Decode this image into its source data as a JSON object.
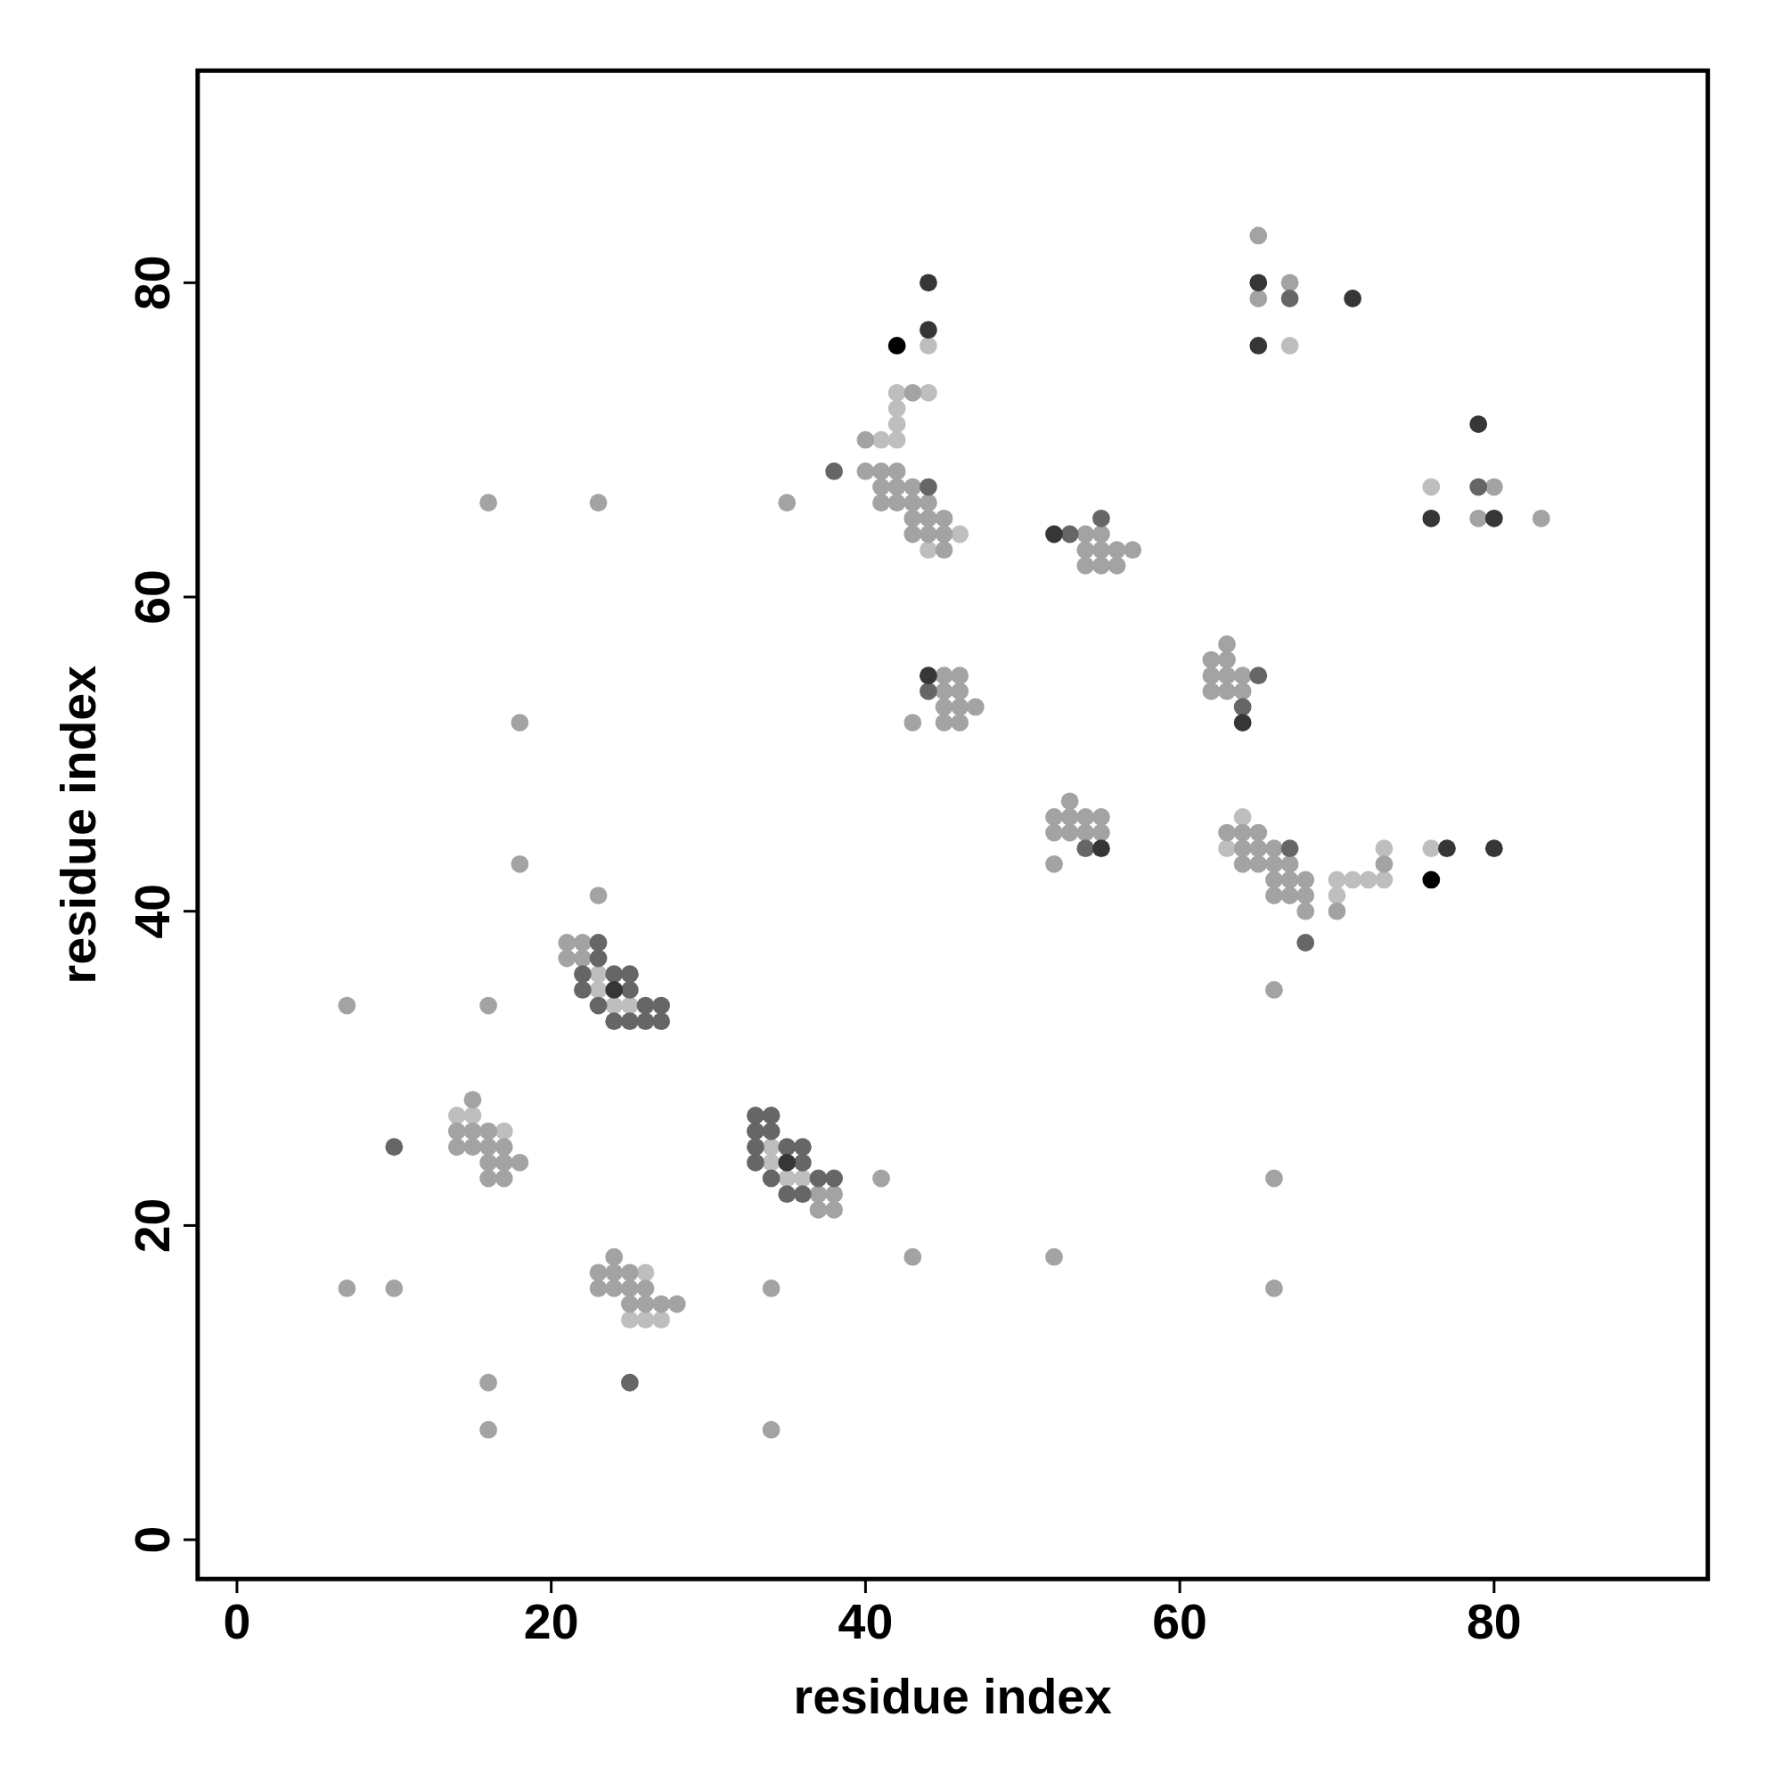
{
  "chart_data": {
    "type": "scatter",
    "xlabel": "residue index",
    "ylabel": "residue index",
    "xlim": [
      -2.5,
      93.6
    ],
    "ylim": [
      -2.5,
      93.5
    ],
    "xticks": [
      0,
      20,
      40,
      60,
      80
    ],
    "yticks": [
      0,
      20,
      40,
      60,
      80
    ],
    "marker": "circle",
    "grid": false,
    "series": [
      {
        "color": "#bebebe",
        "x": [
          14,
          15,
          17,
          25,
          26,
          27,
          26,
          23,
          23,
          24,
          25,
          34,
          34,
          35,
          36,
          44,
          42,
          44,
          42,
          42,
          41,
          42,
          46,
          44,
          64,
          63,
          70,
          71,
          72,
          73,
          70,
          73,
          76,
          67,
          76
        ],
        "values": [
          27,
          27,
          26,
          14,
          14,
          14,
          17,
          36,
          35,
          34,
          34,
          25,
          24,
          23,
          23,
          76,
          73,
          73,
          72,
          71,
          70,
          70,
          64,
          63,
          46,
          44,
          42,
          42,
          42,
          42,
          41,
          44,
          44,
          76,
          67
        ]
      },
      {
        "color": "#a3a3a3",
        "x": [
          7,
          7,
          10,
          16,
          16,
          16,
          16,
          18,
          18,
          23,
          23,
          34,
          34,
          35,
          41,
          43,
          43,
          52,
          52,
          66,
          66,
          66,
          15,
          14,
          15,
          16,
          14,
          15,
          16,
          17,
          16,
          17,
          18,
          16,
          17,
          24,
          23,
          24,
          25,
          23,
          24,
          25,
          26,
          25,
          26,
          27,
          28,
          21,
          22,
          21,
          22,
          37,
          38,
          37,
          38,
          43,
          40,
          40,
          41,
          42,
          41,
          42,
          43,
          41,
          42,
          43,
          44,
          43,
          44,
          45,
          43,
          44,
          45,
          45,
          54,
          55,
          54,
          55,
          56,
          57,
          54,
          55,
          56,
          45,
          46,
          45,
          46,
          45,
          46,
          47,
          45,
          46,
          53,
          52,
          53,
          54,
          55,
          52,
          53,
          54,
          55,
          63,
          62,
          63,
          62,
          63,
          64,
          62,
          63,
          64,
          63,
          64,
          65,
          64,
          65,
          66,
          64,
          65,
          66,
          67,
          73,
          66,
          67,
          68,
          66,
          67,
          68,
          68,
          70,
          65,
          67,
          65,
          80,
          79,
          83
        ],
        "values": [
          34,
          16,
          16,
          66,
          34,
          10,
          7,
          52,
          43,
          66,
          41,
          16,
          7,
          66,
          23,
          52,
          18,
          43,
          18,
          35,
          23,
          16,
          28,
          26,
          26,
          26,
          25,
          25,
          25,
          25,
          24,
          24,
          24,
          23,
          23,
          18,
          17,
          17,
          17,
          16,
          16,
          16,
          16,
          15,
          15,
          15,
          15,
          38,
          38,
          37,
          37,
          22,
          22,
          21,
          21,
          73,
          70,
          68,
          68,
          68,
          67,
          67,
          67,
          66,
          66,
          66,
          66,
          65,
          65,
          65,
          64,
          64,
          64,
          63,
          64,
          64,
          63,
          63,
          63,
          63,
          62,
          62,
          62,
          55,
          55,
          54,
          54,
          53,
          53,
          53,
          52,
          52,
          47,
          46,
          46,
          46,
          46,
          45,
          45,
          45,
          45,
          57,
          56,
          56,
          55,
          55,
          55,
          54,
          54,
          54,
          45,
          45,
          45,
          44,
          44,
          44,
          43,
          43,
          43,
          43,
          43,
          42,
          42,
          42,
          41,
          41,
          41,
          40,
          40,
          83,
          80,
          79,
          67,
          65,
          65
        ]
      },
      {
        "color": "#666666",
        "x": [
          10,
          25,
          38,
          68,
          23,
          23,
          22,
          24,
          25,
          22,
          25,
          23,
          26,
          27,
          24,
          25,
          26,
          27,
          33,
          34,
          33,
          34,
          33,
          35,
          36,
          33,
          36,
          34,
          37,
          38,
          35,
          36,
          44,
          53,
          55,
          44,
          54,
          65,
          64,
          67,
          67,
          79
        ],
        "values": [
          25,
          10,
          68,
          38,
          38,
          37,
          36,
          36,
          36,
          35,
          35,
          34,
          34,
          34,
          33,
          33,
          33,
          33,
          27,
          27,
          26,
          26,
          25,
          25,
          25,
          24,
          24,
          23,
          23,
          23,
          22,
          22,
          67,
          64,
          65,
          54,
          44,
          55,
          53,
          44,
          79,
          67
        ]
      },
      {
        "color": "#363636",
        "x": [
          24,
          35,
          44,
          44,
          52,
          44,
          55,
          64,
          65,
          71,
          65,
          79,
          76,
          80,
          77,
          80
        ],
        "values": [
          35,
          24,
          80,
          77,
          64,
          55,
          44,
          52,
          80,
          79,
          76,
          71,
          65,
          65,
          44,
          44
        ]
      },
      {
        "color": "#000000",
        "x": [
          42,
          76
        ],
        "values": [
          76,
          42
        ]
      }
    ]
  }
}
